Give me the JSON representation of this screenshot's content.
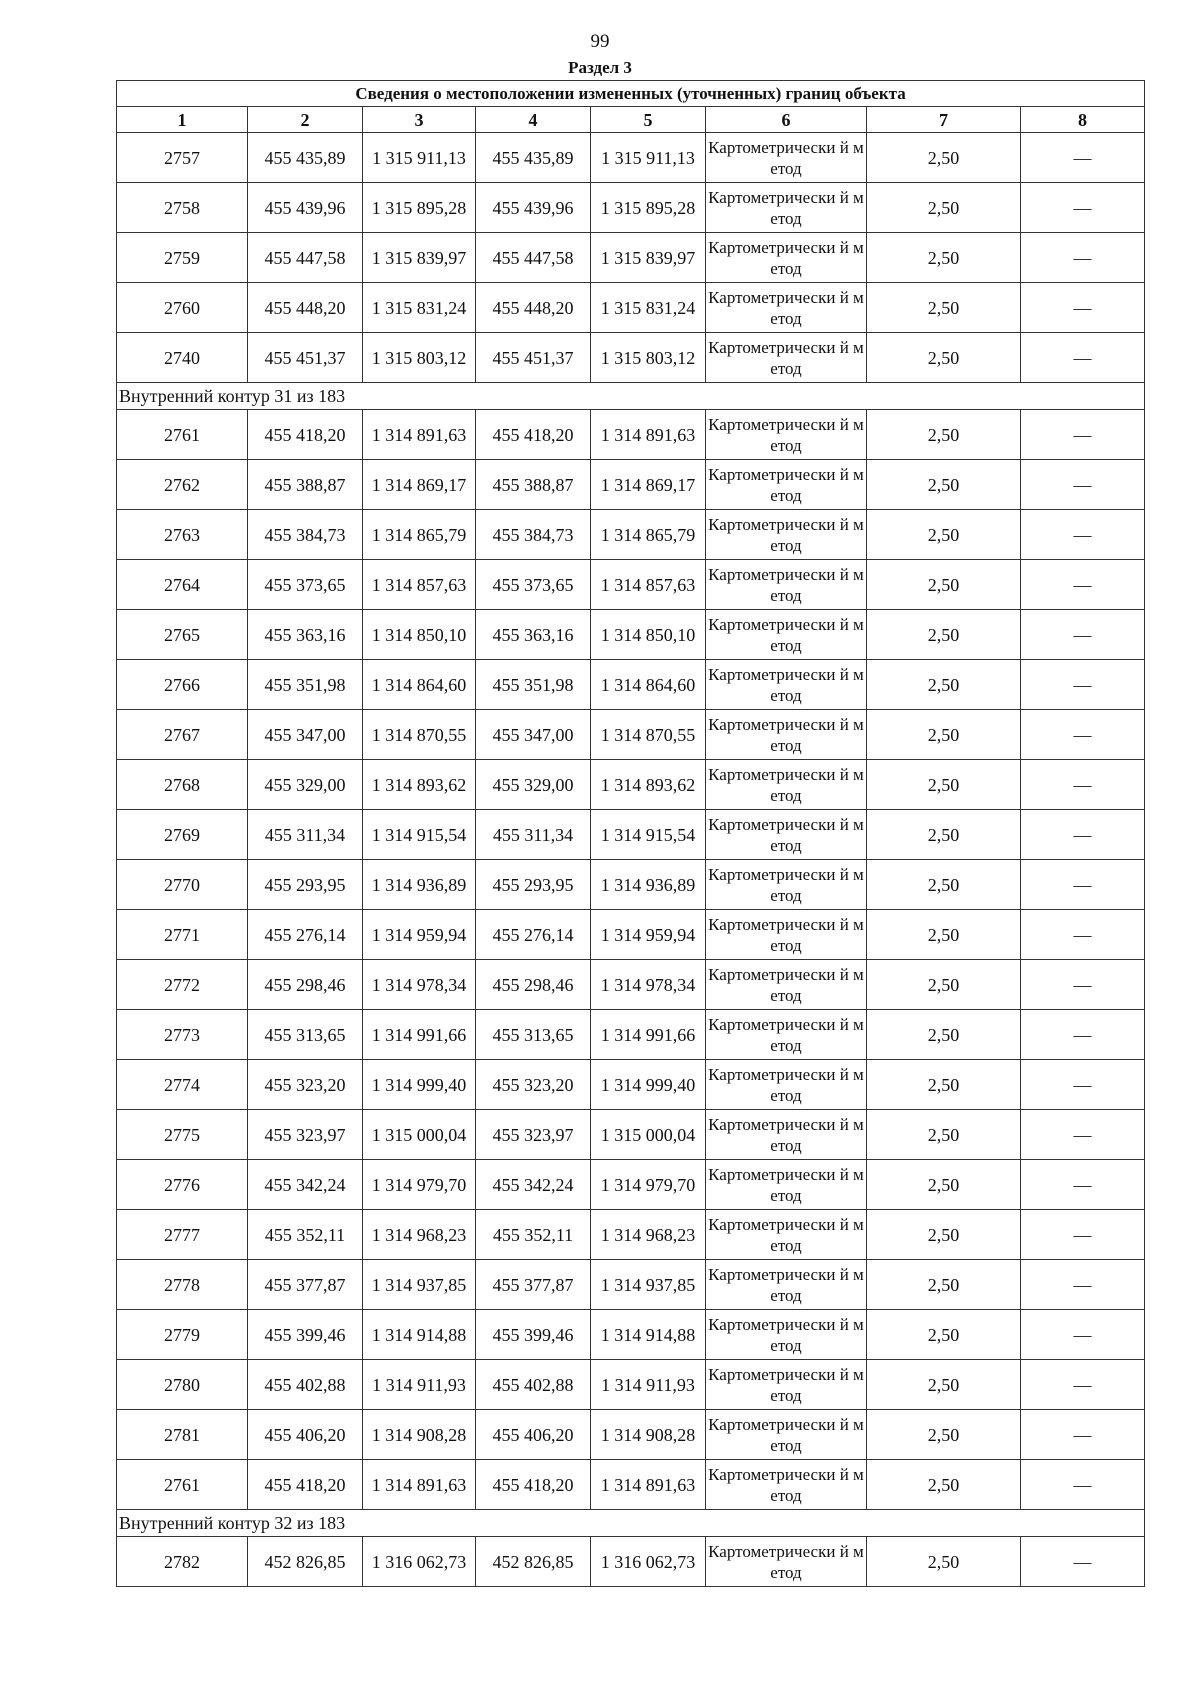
{
  "page_number": "99",
  "section_title": "Раздел 3",
  "table": {
    "title": "Сведения о местоположении измененных (уточненных) границ объекта",
    "column_numbers": [
      "1",
      "2",
      "3",
      "4",
      "5",
      "6",
      "7",
      "8"
    ],
    "groups": [
      {
        "contour": "",
        "rows": [
          [
            "2757",
            "455 435,89",
            "1 315 911,13",
            "455 435,89",
            "1 315 911,13",
            "Картометрически й метод",
            "2,50",
            "—"
          ],
          [
            "2758",
            "455 439,96",
            "1 315 895,28",
            "455 439,96",
            "1 315 895,28",
            "Картометрически й метод",
            "2,50",
            "—"
          ],
          [
            "2759",
            "455 447,58",
            "1 315 839,97",
            "455 447,58",
            "1 315 839,97",
            "Картометрически й метод",
            "2,50",
            "—"
          ],
          [
            "2760",
            "455 448,20",
            "1 315 831,24",
            "455 448,20",
            "1 315 831,24",
            "Картометрически й метод",
            "2,50",
            "—"
          ],
          [
            "2740",
            "455 451,37",
            "1 315 803,12",
            "455 451,37",
            "1 315 803,12",
            "Картометрически й метод",
            "2,50",
            "—"
          ]
        ]
      },
      {
        "contour": "Внутренний контур 31 из 183",
        "rows": [
          [
            "2761",
            "455 418,20",
            "1 314 891,63",
            "455 418,20",
            "1 314 891,63",
            "Картометрически й метод",
            "2,50",
            "—"
          ],
          [
            "2762",
            "455 388,87",
            "1 314 869,17",
            "455 388,87",
            "1 314 869,17",
            "Картометрически й метод",
            "2,50",
            "—"
          ],
          [
            "2763",
            "455 384,73",
            "1 314 865,79",
            "455 384,73",
            "1 314 865,79",
            "Картометрически й метод",
            "2,50",
            "—"
          ],
          [
            "2764",
            "455 373,65",
            "1 314 857,63",
            "455 373,65",
            "1 314 857,63",
            "Картометрически й метод",
            "2,50",
            "—"
          ],
          [
            "2765",
            "455 363,16",
            "1 314 850,10",
            "455 363,16",
            "1 314 850,10",
            "Картометрически й метод",
            "2,50",
            "—"
          ],
          [
            "2766",
            "455 351,98",
            "1 314 864,60",
            "455 351,98",
            "1 314 864,60",
            "Картометрически й метод",
            "2,50",
            "—"
          ],
          [
            "2767",
            "455 347,00",
            "1 314 870,55",
            "455 347,00",
            "1 314 870,55",
            "Картометрически й метод",
            "2,50",
            "—"
          ],
          [
            "2768",
            "455 329,00",
            "1 314 893,62",
            "455 329,00",
            "1 314 893,62",
            "Картометрически й метод",
            "2,50",
            "—"
          ],
          [
            "2769",
            "455 311,34",
            "1 314 915,54",
            "455 311,34",
            "1 314 915,54",
            "Картометрически й метод",
            "2,50",
            "—"
          ],
          [
            "2770",
            "455 293,95",
            "1 314 936,89",
            "455 293,95",
            "1 314 936,89",
            "Картометрически й метод",
            "2,50",
            "—"
          ],
          [
            "2771",
            "455 276,14",
            "1 314 959,94",
            "455 276,14",
            "1 314 959,94",
            "Картометрически й метод",
            "2,50",
            "—"
          ],
          [
            "2772",
            "455 298,46",
            "1 314 978,34",
            "455 298,46",
            "1 314 978,34",
            "Картометрически й метод",
            "2,50",
            "—"
          ],
          [
            "2773",
            "455 313,65",
            "1 314 991,66",
            "455 313,65",
            "1 314 991,66",
            "Картометрически й метод",
            "2,50",
            "—"
          ],
          [
            "2774",
            "455 323,20",
            "1 314 999,40",
            "455 323,20",
            "1 314 999,40",
            "Картометрически й метод",
            "2,50",
            "—"
          ],
          [
            "2775",
            "455 323,97",
            "1 315 000,04",
            "455 323,97",
            "1 315 000,04",
            "Картометрически й метод",
            "2,50",
            "—"
          ],
          [
            "2776",
            "455 342,24",
            "1 314 979,70",
            "455 342,24",
            "1 314 979,70",
            "Картометрически й метод",
            "2,50",
            "—"
          ],
          [
            "2777",
            "455 352,11",
            "1 314 968,23",
            "455 352,11",
            "1 314 968,23",
            "Картометрически й метод",
            "2,50",
            "—"
          ],
          [
            "2778",
            "455 377,87",
            "1 314 937,85",
            "455 377,87",
            "1 314 937,85",
            "Картометрически й метод",
            "2,50",
            "—"
          ],
          [
            "2779",
            "455 399,46",
            "1 314 914,88",
            "455 399,46",
            "1 314 914,88",
            "Картометрически й метод",
            "2,50",
            "—"
          ],
          [
            "2780",
            "455 402,88",
            "1 314 911,93",
            "455 402,88",
            "1 314 911,93",
            "Картометрически й метод",
            "2,50",
            "—"
          ],
          [
            "2781",
            "455 406,20",
            "1 314 908,28",
            "455 406,20",
            "1 314 908,28",
            "Картометрически й метод",
            "2,50",
            "—"
          ],
          [
            "2761",
            "455 418,20",
            "1 314 891,63",
            "455 418,20",
            "1 314 891,63",
            "Картометрически й метод",
            "2,50",
            "—"
          ]
        ]
      },
      {
        "contour": "Внутренний контур 32 из 183",
        "rows": [
          [
            "2782",
            "452 826,85",
            "1 316 062,73",
            "452 826,85",
            "1 316 062,73",
            "Картометрически й метод",
            "2,50",
            "—"
          ]
        ]
      }
    ]
  }
}
